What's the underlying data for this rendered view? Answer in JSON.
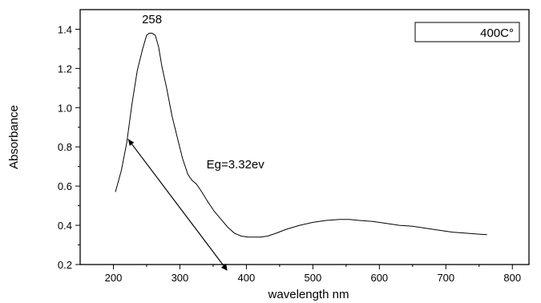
{
  "chart_data": {
    "type": "line",
    "title": "",
    "xlabel": "wavelength nm",
    "ylabel": "Absorbance",
    "xlim": [
      150,
      825
    ],
    "ylim": [
      0.2,
      1.5
    ],
    "x_ticks": [
      200,
      300,
      400,
      500,
      600,
      700,
      800
    ],
    "y_ticks": [
      0.2,
      0.4,
      0.6,
      0.8,
      1.0,
      1.2,
      1.4
    ],
    "x_tick_labels": [
      "200",
      "300",
      "400",
      "500",
      "600",
      "700",
      "800"
    ],
    "y_tick_labels": [
      "0.2",
      "0.4",
      "0.6",
      "0.8",
      "1.0",
      "1.2",
      "1.4"
    ],
    "grid": false,
    "legend": {
      "placement": "top-right",
      "entries": [
        "400C°"
      ]
    },
    "series": [
      {
        "x": [
          203,
          212,
          220,
          228,
          236,
          244,
          250,
          254,
          258,
          263,
          268,
          273,
          280,
          288,
          296,
          304,
          312,
          318,
          325,
          333,
          342,
          352,
          362,
          372,
          382,
          392,
          402,
          412,
          422,
          432,
          445,
          460,
          480,
          500,
          520,
          540,
          555,
          570,
          590,
          610,
          630,
          650,
          670,
          690,
          710,
          730,
          750,
          762
        ],
        "y": [
          0.57,
          0.68,
          0.82,
          1.02,
          1.19,
          1.3,
          1.37,
          1.38,
          1.38,
          1.37,
          1.31,
          1.21,
          1.1,
          0.96,
          0.85,
          0.74,
          0.66,
          0.63,
          0.61,
          0.57,
          0.52,
          0.47,
          0.43,
          0.39,
          0.36,
          0.345,
          0.34,
          0.34,
          0.34,
          0.345,
          0.36,
          0.38,
          0.4,
          0.415,
          0.425,
          0.43,
          0.43,
          0.425,
          0.42,
          0.41,
          0.4,
          0.395,
          0.385,
          0.375,
          0.365,
          0.36,
          0.355,
          0.352
        ]
      }
    ],
    "tangent_line": {
      "from": [
        222,
        0.84
      ],
      "to": [
        370,
        0.175
      ]
    },
    "annotations": [
      {
        "text": "258",
        "x": 258,
        "y": 1.43
      },
      {
        "text": "Eg=3.32ev",
        "x": 340,
        "y": 0.69
      }
    ]
  }
}
